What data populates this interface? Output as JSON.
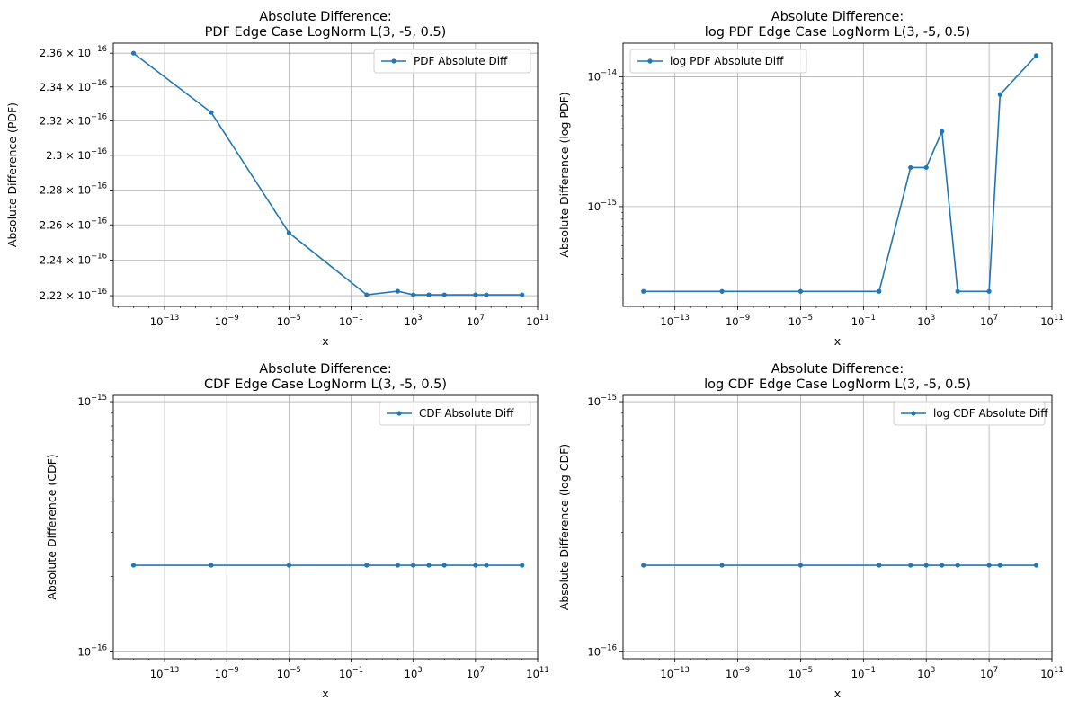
{
  "chart_data": [
    {
      "type": "line",
      "title_line1": "Absolute Difference:",
      "title_line2": "PDF Edge Case LogNorm L(3, -5, 0.5)",
      "xlabel": "x",
      "ylabel": "Absolute Difference (PDF)",
      "x_scale": "log",
      "y_scale": "log",
      "xlim": [
        5e-17,
        100000000000.0
      ],
      "ylim": [
        2.214e-16,
        2.366e-16
      ],
      "x_ticks": [
        {
          "mant": "10",
          "exp": "−13",
          "value": 1e-13
        },
        {
          "mant": "10",
          "exp": "−9",
          "value": 1e-09
        },
        {
          "mant": "10",
          "exp": "−5",
          "value": 1e-05
        },
        {
          "mant": "10",
          "exp": "−1",
          "value": 0.1
        },
        {
          "mant": "10",
          "exp": "3",
          "value": 1000
        },
        {
          "mant": "10",
          "exp": "7",
          "value": 10000000.0
        },
        {
          "mant": "10",
          "exp": "11",
          "value": 100000000000.0
        }
      ],
      "y_ticks": [
        {
          "mant": "2.22 × 10",
          "exp": "−16",
          "value": 2.22e-16
        },
        {
          "mant": "2.24 × 10",
          "exp": "−16",
          "value": 2.24e-16
        },
        {
          "mant": "2.26 × 10",
          "exp": "−16",
          "value": 2.26e-16
        },
        {
          "mant": "2.28 × 10",
          "exp": "−16",
          "value": 2.28e-16
        },
        {
          "mant": "2.3 × 10",
          "exp": "−16",
          "value": 2.3e-16
        },
        {
          "mant": "2.32 × 10",
          "exp": "−16",
          "value": 2.32e-16
        },
        {
          "mant": "2.34 × 10",
          "exp": "−16",
          "value": 2.34e-16
        },
        {
          "mant": "2.36 × 10",
          "exp": "−16",
          "value": 2.36e-16
        }
      ],
      "grid": true,
      "legend_position": "top-right",
      "series": [
        {
          "name": "PDF Absolute Diff",
          "color": "#1f77b4",
          "marker": "circle",
          "x": [
            1e-15,
            1e-10,
            1e-05,
            1,
            100,
            1000,
            10000,
            100000,
            10000000,
            50000000,
            10000000000.0
          ],
          "y": [
            2.36e-16,
            2.325e-16,
            2.2555e-16,
            2.2205e-16,
            2.2225e-16,
            2.2205e-16,
            2.2205e-16,
            2.2205e-16,
            2.2205e-16,
            2.2205e-16,
            2.2205e-16
          ]
        }
      ]
    },
    {
      "type": "line",
      "title_line1": "Absolute Difference:",
      "title_line2": "log PDF Edge Case LogNorm L(3, -5, 0.5)",
      "xlabel": "x",
      "ylabel": "Absolute Difference (log PDF)",
      "x_scale": "log",
      "y_scale": "log",
      "xlim": [
        5e-17,
        100000000000.0
      ],
      "ylim": [
        1.7e-16,
        1.82e-14
      ],
      "x_ticks": [
        {
          "mant": "10",
          "exp": "−13",
          "value": 1e-13
        },
        {
          "mant": "10",
          "exp": "−9",
          "value": 1e-09
        },
        {
          "mant": "10",
          "exp": "−5",
          "value": 1e-05
        },
        {
          "mant": "10",
          "exp": "−1",
          "value": 0.1
        },
        {
          "mant": "10",
          "exp": "3",
          "value": 1000
        },
        {
          "mant": "10",
          "exp": "7",
          "value": 10000000.0
        },
        {
          "mant": "10",
          "exp": "11",
          "value": 100000000000.0
        }
      ],
      "y_ticks": [
        {
          "mant": "10",
          "exp": "−15",
          "value": 1e-15
        },
        {
          "mant": "10",
          "exp": "−14",
          "value": 1e-14
        }
      ],
      "grid": true,
      "legend_position": "top-left",
      "series": [
        {
          "name": "log PDF Absolute Diff",
          "color": "#1f77b4",
          "marker": "circle",
          "x": [
            1e-15,
            1e-10,
            1e-05,
            1,
            100,
            1000,
            10000,
            100000,
            10000000,
            50000000,
            10000000000.0
          ],
          "y": [
            2.22e-16,
            2.22e-16,
            2.22e-16,
            2.22e-16,
            2e-15,
            2e-15,
            3.8e-15,
            2.22e-16,
            2.22e-16,
            7.3e-15,
            1.46e-14
          ]
        }
      ]
    },
    {
      "type": "line",
      "title_line1": "Absolute Difference:",
      "title_line2": "CDF Edge Case LogNorm L(3, -5, 0.5)",
      "xlabel": "x",
      "ylabel": "Absolute Difference (CDF)",
      "x_scale": "log",
      "y_scale": "log",
      "xlim": [
        5e-17,
        100000000000.0
      ],
      "ylim": [
        9.4e-17,
        1.06e-15
      ],
      "x_ticks": [
        {
          "mant": "10",
          "exp": "−13",
          "value": 1e-13
        },
        {
          "mant": "10",
          "exp": "−9",
          "value": 1e-09
        },
        {
          "mant": "10",
          "exp": "−5",
          "value": 1e-05
        },
        {
          "mant": "10",
          "exp": "−1",
          "value": 0.1
        },
        {
          "mant": "10",
          "exp": "3",
          "value": 1000
        },
        {
          "mant": "10",
          "exp": "7",
          "value": 10000000.0
        },
        {
          "mant": "10",
          "exp": "11",
          "value": 100000000000.0
        }
      ],
      "y_ticks": [
        {
          "mant": "10",
          "exp": "−16",
          "value": 1e-16
        },
        {
          "mant": "10",
          "exp": "−15",
          "value": 1e-15
        }
      ],
      "grid": true,
      "legend_position": "top-right",
      "series": [
        {
          "name": "CDF Absolute Diff",
          "color": "#1f77b4",
          "marker": "circle",
          "x": [
            1e-15,
            1e-10,
            1e-05,
            1,
            100,
            1000,
            10000,
            100000,
            10000000,
            50000000,
            10000000000.0
          ],
          "y": [
            2.22e-16,
            2.22e-16,
            2.22e-16,
            2.22e-16,
            2.22e-16,
            2.22e-16,
            2.22e-16,
            2.22e-16,
            2.22e-16,
            2.22e-16,
            2.22e-16
          ]
        }
      ]
    },
    {
      "type": "line",
      "title_line1": "Absolute Difference:",
      "title_line2": "log CDF Edge Case LogNorm L(3, -5, 0.5)",
      "xlabel": "x",
      "ylabel": "Absolute Difference (log CDF)",
      "x_scale": "log",
      "y_scale": "log",
      "xlim": [
        5e-17,
        100000000000.0
      ],
      "ylim": [
        9.4e-17,
        1.06e-15
      ],
      "x_ticks": [
        {
          "mant": "10",
          "exp": "−13",
          "value": 1e-13
        },
        {
          "mant": "10",
          "exp": "−9",
          "value": 1e-09
        },
        {
          "mant": "10",
          "exp": "−5",
          "value": 1e-05
        },
        {
          "mant": "10",
          "exp": "−1",
          "value": 0.1
        },
        {
          "mant": "10",
          "exp": "3",
          "value": 1000
        },
        {
          "mant": "10",
          "exp": "7",
          "value": 10000000.0
        },
        {
          "mant": "10",
          "exp": "11",
          "value": 100000000000.0
        }
      ],
      "y_ticks": [
        {
          "mant": "10",
          "exp": "−16",
          "value": 1e-16
        },
        {
          "mant": "10",
          "exp": "−15",
          "value": 1e-15
        }
      ],
      "grid": true,
      "legend_position": "top-right",
      "series": [
        {
          "name": "log CDF Absolute Diff",
          "color": "#1f77b4",
          "marker": "circle",
          "x": [
            1e-15,
            1e-10,
            1e-05,
            1,
            100,
            1000,
            10000,
            100000,
            10000000,
            50000000,
            10000000000.0
          ],
          "y": [
            2.22e-16,
            2.22e-16,
            2.22e-16,
            2.22e-16,
            2.22e-16,
            2.22e-16,
            2.22e-16,
            2.22e-16,
            2.22e-16,
            2.22e-16,
            2.22e-16
          ]
        }
      ]
    }
  ]
}
